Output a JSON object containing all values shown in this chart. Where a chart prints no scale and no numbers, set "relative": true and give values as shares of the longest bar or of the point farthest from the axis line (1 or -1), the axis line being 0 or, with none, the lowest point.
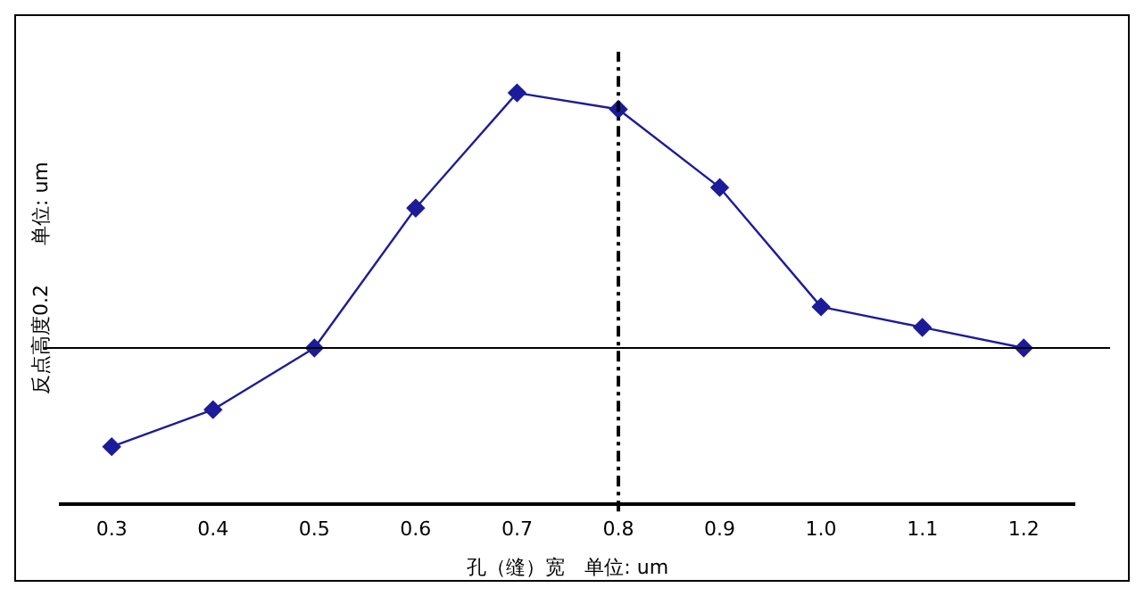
{
  "chart_data": {
    "type": "line",
    "relative": true,
    "xlabel": "孔（缝）宽　单位: um",
    "ylabel": "反点高度0.2　　单位: um",
    "categories": [
      "0.3",
      "0.4",
      "0.5",
      "0.6",
      "0.7",
      "0.8",
      "0.9",
      "1.0",
      "1.1",
      "1.2"
    ],
    "series": [
      {
        "color": "#1c1c99",
        "values": [
          0.14,
          0.23,
          0.38,
          0.72,
          1,
          0.96,
          0.77,
          0.48,
          0.43,
          0.38
        ]
      }
    ],
    "ref_lines": [
      {
        "axis": "y",
        "value": 0.38,
        "color": "#000000",
        "line_style": "solid"
      },
      {
        "axis": "x",
        "value": "0.8",
        "color": "#000000",
        "line_style": "dashed"
      }
    ],
    "marker": "diamond",
    "line_style": "solid",
    "grid": false,
    "legend": false
  }
}
